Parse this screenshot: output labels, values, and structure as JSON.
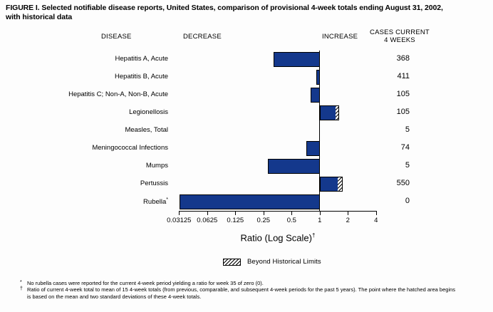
{
  "title": {
    "line1": "FIGURE I. Selected notifiable disease reports, United States, comparison of provisional 4-week totals ending August 31, 2002,",
    "line2": "with historical data"
  },
  "headers": {
    "disease": "DISEASE",
    "decrease": "DECREASE",
    "increase": "INCREASE",
    "cases_line1": "CASES CURRENT",
    "cases_line2": "4 WEEKS"
  },
  "chart_data": {
    "type": "bar",
    "orientation": "horizontal",
    "scale": "log2",
    "bar_color": "#14388c",
    "axis": {
      "label": "Ratio (Log Scale)",
      "label_superscript": "†",
      "min": 0.03125,
      "max": 4,
      "baseline": 1,
      "ticks": [
        0.03125,
        0.0625,
        0.125,
        0.25,
        0.5,
        1,
        2,
        4
      ],
      "tick_labels": [
        "0.03125",
        "0.0625",
        "0.125",
        "0.25",
        "0.5",
        "1",
        "2",
        "4"
      ]
    },
    "rows": [
      {
        "disease": "Hepatitis A, Acute",
        "ratio": 0.32,
        "cases": "368",
        "beyond_limit": false
      },
      {
        "disease": "Hepatitis B, Acute",
        "ratio": 0.92,
        "cases": "411",
        "beyond_limit": false
      },
      {
        "disease": "Hepatitis C; Non-A, Non-B, Acute",
        "ratio": 0.8,
        "cases": "105",
        "beyond_limit": false
      },
      {
        "disease": "Legionellosis",
        "ratio": 1.61,
        "cases": "105",
        "beyond_limit": true,
        "limit_start": 1.49
      },
      {
        "disease": "Measles, Total",
        "ratio": 1.0,
        "cases": "5",
        "beyond_limit": false
      },
      {
        "disease": "Meningococcal Infections",
        "ratio": 0.72,
        "cases": "74",
        "beyond_limit": false
      },
      {
        "disease": "Mumps",
        "ratio": 0.28,
        "cases": "5",
        "beyond_limit": false
      },
      {
        "disease": "Pertussis",
        "ratio": 1.76,
        "cases": "550",
        "beyond_limit": true,
        "limit_start": 1.58
      },
      {
        "disease": "Rubella",
        "label_superscript": "*",
        "ratio": 0,
        "cases": "0",
        "beyond_limit": false
      }
    ],
    "legend": {
      "label": "Beyond Historical Limits",
      "pattern": "diagonal-hatch"
    }
  },
  "footnotes": [
    {
      "marker": "*",
      "lines": [
        "No rubella cases were reported for the current 4-week period yielding a ratio for week 35 of zero (0)."
      ]
    },
    {
      "marker": "†",
      "lines": [
        "Ratio of current 4-week total to mean of 15 4-week totals (from previous, comparable, and subsequent 4-week periods for the past 5 years). The point where the hatched area begins",
        "is based on the mean and two standard deviations of these 4-week totals."
      ]
    }
  ]
}
